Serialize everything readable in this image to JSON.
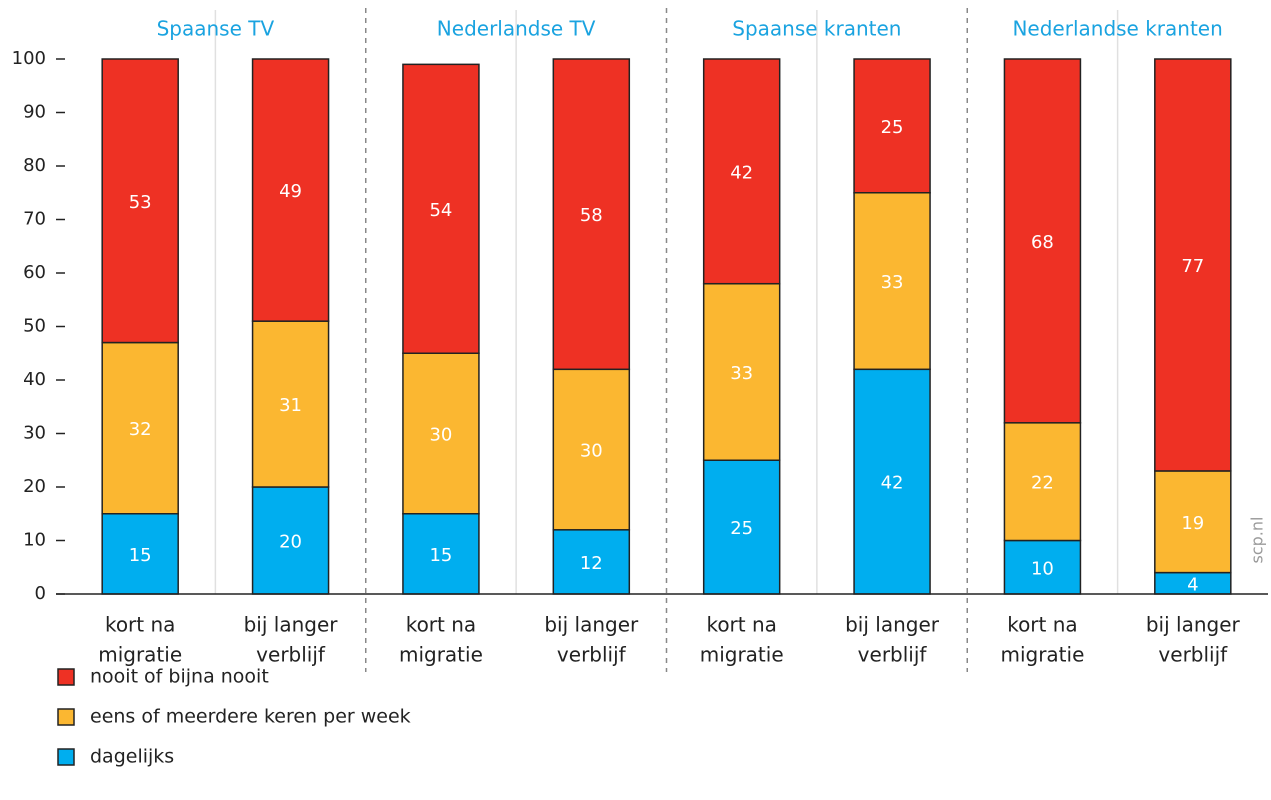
{
  "chart_data": {
    "type": "stacked_bar",
    "groups": [
      "Spaanse TV",
      "Nederlandse TV",
      "Spaanse kranten",
      "Nederlandse kranten"
    ],
    "categories": [
      [
        "kort na",
        "migratie"
      ],
      [
        "bij langer",
        "verblijf"
      ],
      [
        "kort na",
        "migratie"
      ],
      [
        "bij langer",
        "verblijf"
      ],
      [
        "kort na",
        "migratie"
      ],
      [
        "bij langer",
        "verblijf"
      ],
      [
        "kort na",
        "migratie"
      ],
      [
        "bij langer",
        "verblijf"
      ]
    ],
    "series": [
      {
        "name": "dagelijks",
        "color": "#00aeef",
        "values": [
          15,
          20,
          15,
          12,
          25,
          42,
          10,
          4
        ]
      },
      {
        "name": "eens of meerdere keren per week",
        "color": "#fbb731",
        "values": [
          32,
          31,
          30,
          30,
          33,
          33,
          22,
          19
        ]
      },
      {
        "name": "nooit of bijna nooit",
        "color": "#ee3124",
        "values": [
          53,
          49,
          54,
          58,
          42,
          25,
          68,
          77
        ]
      }
    ],
    "ylim": [
      0,
      100
    ],
    "yticks": [
      0,
      10,
      20,
      30,
      40,
      50,
      60,
      70,
      80,
      90,
      100
    ],
    "watermark": "scp.nl"
  }
}
